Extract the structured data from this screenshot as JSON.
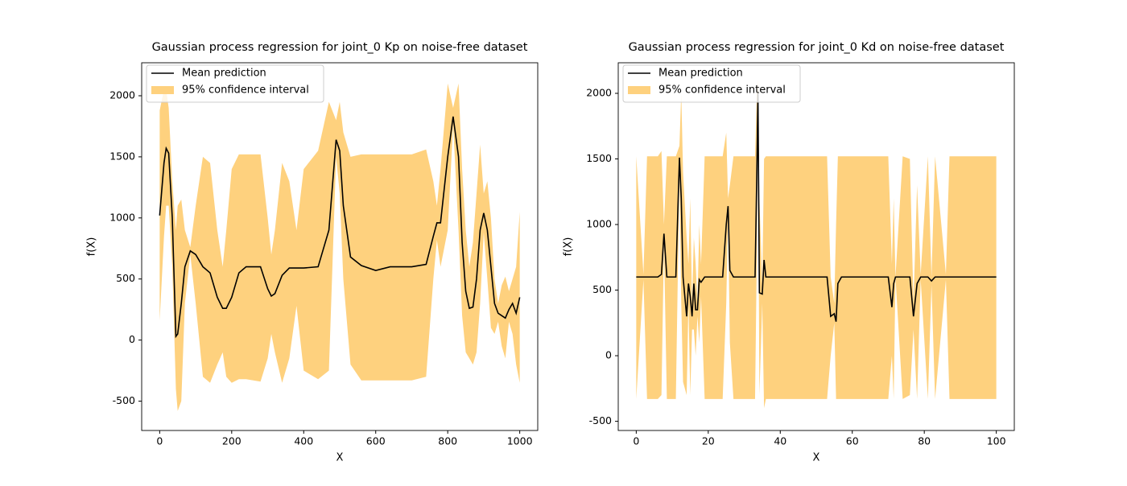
{
  "chart_data": [
    {
      "type": "line",
      "title": "Gaussian process regression for joint_0 Kp on noise-free dataset",
      "xlabel": "X",
      "ylabel": "f(X)",
      "x": [
        0,
        12,
        18,
        25,
        35,
        45,
        50,
        60,
        70,
        85,
        100,
        120,
        140,
        160,
        175,
        185,
        200,
        220,
        240,
        280,
        300,
        310,
        320,
        340,
        360,
        380,
        400,
        440,
        470,
        490,
        500,
        510,
        530,
        560,
        600,
        640,
        700,
        740,
        760,
        770,
        780,
        800,
        815,
        830,
        840,
        850,
        860,
        870,
        880,
        890,
        900,
        910,
        920,
        930,
        940,
        950,
        960,
        970,
        980,
        990,
        1000
      ],
      "series": [
        {
          "name": "Mean prediction",
          "color": "#000000",
          "values": [
            1020,
            1450,
            1570,
            1530,
            1000,
            30,
            50,
            300,
            600,
            730,
            700,
            600,
            550,
            350,
            260,
            260,
            350,
            550,
            600,
            600,
            420,
            360,
            380,
            530,
            590,
            590,
            590,
            600,
            900,
            1640,
            1550,
            1100,
            680,
            610,
            570,
            600,
            600,
            620,
            850,
            960,
            960,
            1500,
            1830,
            1500,
            800,
            400,
            260,
            270,
            500,
            900,
            1040,
            900,
            600,
            300,
            220,
            200,
            180,
            250,
            300,
            220,
            350
          ]
        }
      ],
      "band": {
        "name": "95% confidence interval",
        "color": "#fed17e",
        "upper": [
          1880,
          2050,
          2050,
          1900,
          1300,
          900,
          1100,
          1150,
          900,
          760,
          1100,
          1500,
          1450,
          900,
          600,
          900,
          1400,
          1520,
          1520,
          1520,
          1000,
          700,
          900,
          1450,
          1300,
          900,
          1400,
          1550,
          1950,
          1800,
          1950,
          1700,
          1500,
          1520,
          1520,
          1520,
          1520,
          1560,
          1300,
          1100,
          1400,
          2100,
          1900,
          2100,
          1400,
          900,
          600,
          800,
          1200,
          1600,
          1200,
          1300,
          1000,
          500,
          300,
          450,
          520,
          400,
          500,
          600,
          1050
        ],
        "lower": [
          160,
          850,
          1100,
          1100,
          600,
          -400,
          -580,
          -500,
          300,
          700,
          300,
          -300,
          -350,
          -200,
          -100,
          -300,
          -350,
          -320,
          -320,
          -340,
          -150,
          50,
          -100,
          -350,
          -150,
          280,
          -250,
          -320,
          -250,
          1500,
          1200,
          500,
          -200,
          -330,
          -330,
          -330,
          -330,
          -300,
          500,
          820,
          600,
          900,
          1760,
          900,
          200,
          -100,
          -150,
          -200,
          -100,
          300,
          880,
          500,
          100,
          50,
          150,
          -50,
          -150,
          150,
          50,
          -200,
          -350
        ]
      },
      "xlim": [
        -50,
        1050
      ],
      "ylim": [
        -740,
        2270
      ],
      "xticks": [
        0,
        200,
        400,
        600,
        800,
        1000
      ],
      "yticks": [
        -500,
        0,
        500,
        1000,
        1500,
        2000
      ],
      "legend": "upper left"
    },
    {
      "type": "line",
      "title": "Gaussian process regression for joint_0 Kd on noise-free dataset",
      "xlabel": "X",
      "ylabel": "f(X)",
      "x": [
        0,
        2,
        3,
        6,
        7,
        7.7,
        8.5,
        11,
        12,
        12.5,
        13,
        14,
        14.5,
        15,
        15.5,
        16,
        16.5,
        17,
        17.5,
        18,
        19,
        24,
        25,
        25.5,
        26,
        27,
        33,
        33.5,
        33.8,
        34.2,
        35,
        35.5,
        36,
        53,
        54,
        55,
        55.5,
        56,
        57,
        70,
        71,
        71.5,
        72,
        74,
        76,
        77,
        78,
        79,
        81,
        82,
        83,
        86,
        87,
        100
      ],
      "series": [
        {
          "name": "Mean prediction",
          "color": "#000000",
          "values": [
            600,
            600,
            600,
            600,
            620,
            930,
            600,
            600,
            1510,
            1200,
            600,
            300,
            550,
            450,
            300,
            550,
            350,
            350,
            580,
            560,
            600,
            600,
            1000,
            1140,
            650,
            600,
            600,
            1400,
            2000,
            480,
            470,
            730,
            600,
            600,
            300,
            320,
            260,
            550,
            600,
            600,
            370,
            550,
            600,
            600,
            600,
            300,
            550,
            600,
            600,
            570,
            600,
            600,
            600,
            600
          ]
        }
      ],
      "band": {
        "name": "95% confidence interval",
        "color": "#fed17e",
        "upper": [
          1520,
          620,
          1520,
          1520,
          1560,
          1000,
          1520,
          1520,
          1600,
          2000,
          1400,
          900,
          700,
          1200,
          400,
          900,
          700,
          400,
          1000,
          700,
          1520,
          1520,
          1700,
          1200,
          1300,
          1520,
          1520,
          2000,
          2100,
          1200,
          550,
          1500,
          1520,
          1520,
          600,
          400,
          1000,
          1520,
          1520,
          1520,
          700,
          1200,
          600,
          1520,
          1500,
          400,
          1300,
          620,
          1520,
          600,
          1520,
          620,
          1520,
          1520
        ],
        "lower": [
          -330,
          580,
          -330,
          -330,
          -300,
          860,
          -330,
          -330,
          1400,
          400,
          -200,
          -300,
          400,
          -300,
          200,
          200,
          0,
          300,
          100,
          450,
          -330,
          -330,
          400,
          1080,
          100,
          -330,
          -330,
          800,
          1900,
          -300,
          400,
          -400,
          -330,
          -330,
          0,
          250,
          -330,
          -330,
          -330,
          -330,
          0,
          -330,
          600,
          -330,
          -300,
          200,
          -330,
          580,
          -330,
          540,
          -330,
          580,
          -330,
          -330
        ]
      },
      "xlim": [
        -5,
        105
      ],
      "ylim": [
        -570,
        2233
      ],
      "xticks": [
        0,
        20,
        40,
        60,
        80,
        100
      ],
      "yticks": [
        -500,
        0,
        500,
        1000,
        1500,
        2000
      ],
      "legend": "upper left"
    }
  ]
}
